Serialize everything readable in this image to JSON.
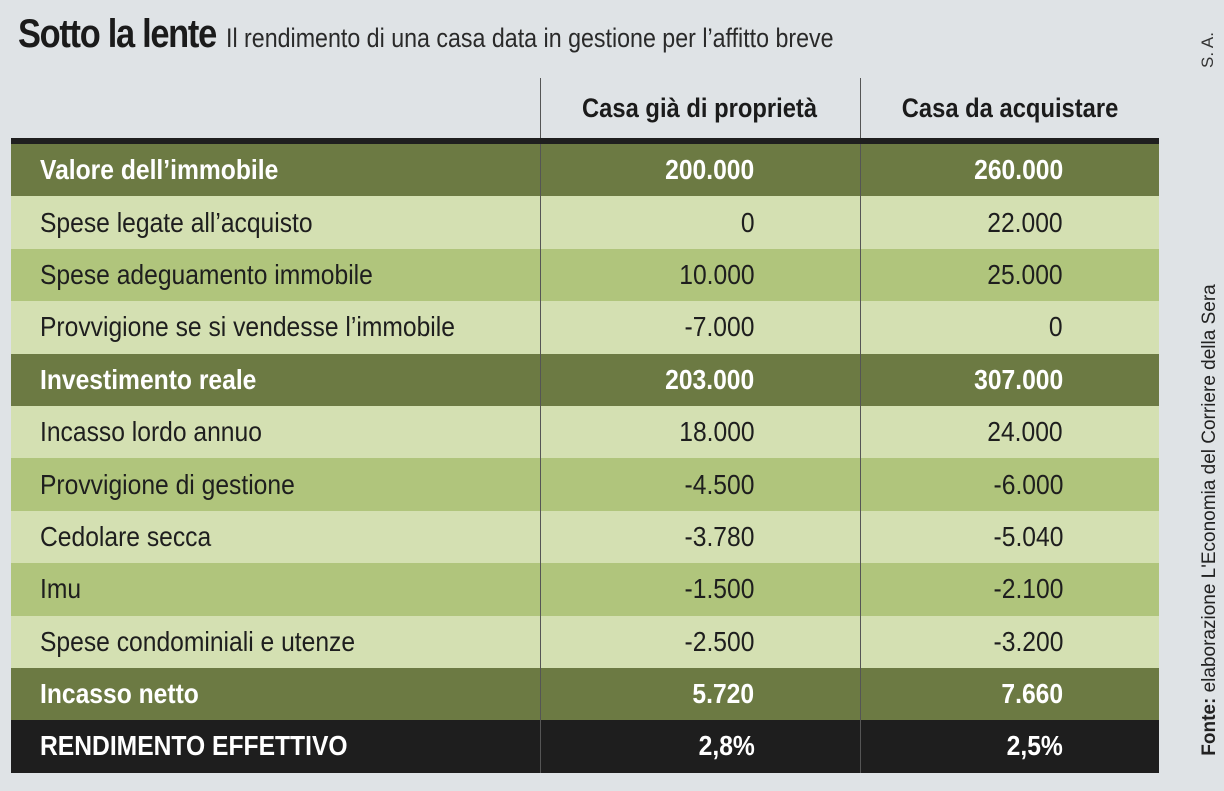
{
  "title": "Sotto la lente",
  "subtitle": "Il rendimento di una casa data in gestione per l’affitto breve",
  "initials": "S. A.",
  "source": {
    "label": "Fonte:",
    "text": " elaborazione L'Economia del Corriere della Sera"
  },
  "chart_data": {
    "type": "table",
    "columns": [
      "",
      "Casa già di proprietà",
      "Casa da acquistare"
    ],
    "rows": [
      {
        "label": "Valore dell’immobile",
        "values": [
          "200.000",
          "260.000"
        ],
        "style": "dark"
      },
      {
        "label": "Spese legate all’acquisto",
        "values": [
          "0",
          "22.000"
        ],
        "style": "light"
      },
      {
        "label": "Spese adeguamento immobile",
        "values": [
          "10.000",
          "25.000"
        ],
        "style": "mid"
      },
      {
        "label": "Provvigione se si vendesse l’immobile",
        "values": [
          "-7.000",
          "0"
        ],
        "style": "light"
      },
      {
        "label": "Investimento reale",
        "values": [
          "203.000",
          "307.000"
        ],
        "style": "dark"
      },
      {
        "label": "Incasso lordo annuo",
        "values": [
          "18.000",
          "24.000"
        ],
        "style": "light"
      },
      {
        "label": "Provvigione di gestione",
        "values": [
          "-4.500",
          "-6.000"
        ],
        "style": "mid"
      },
      {
        "label": "Cedolare secca",
        "values": [
          "-3.780",
          "-5.040"
        ],
        "style": "light"
      },
      {
        "label": "Imu",
        "values": [
          "-1.500",
          "-2.100"
        ],
        "style": "mid"
      },
      {
        "label": "Spese condominiali e utenze",
        "values": [
          "-2.500",
          "-3.200"
        ],
        "style": "light"
      },
      {
        "label": "Incasso netto",
        "values": [
          "5.720",
          "7.660"
        ],
        "style": "dark"
      },
      {
        "label": "RENDIMENTO EFFETTIVO",
        "values": [
          "2,8%",
          "2,5%"
        ],
        "style": "black"
      }
    ],
    "colors": {
      "dark_row": "#6c7a43",
      "mid_row": "#b0c57c",
      "light_row": "#d4e0b2",
      "total_row": "#1e1e1e",
      "background": "#dfe3e6"
    }
  }
}
